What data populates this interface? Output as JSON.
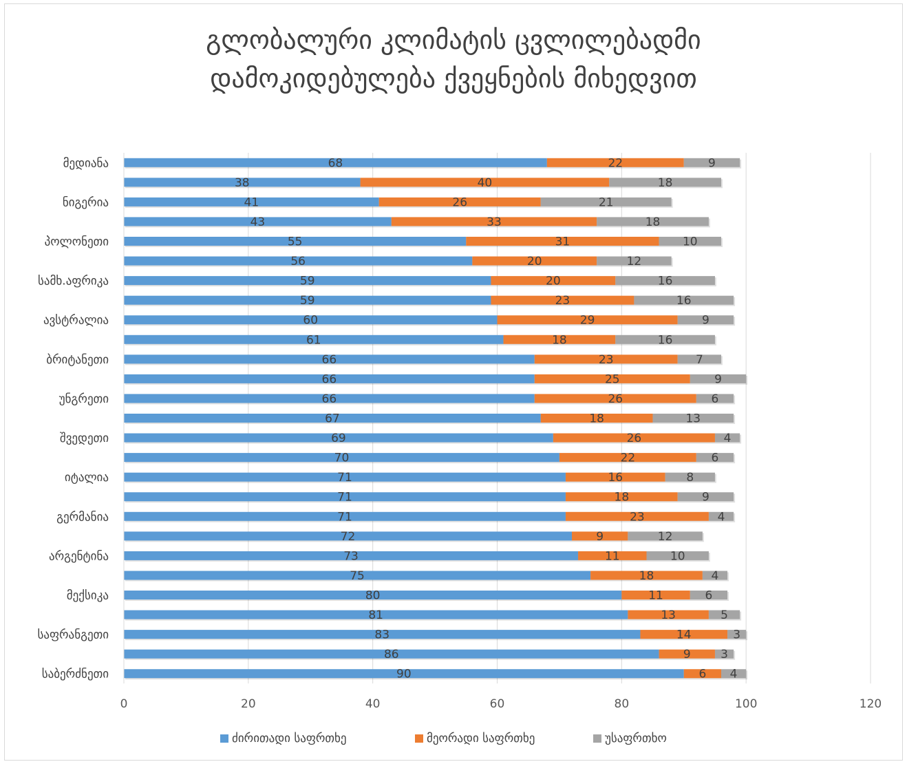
{
  "chart_data": {
    "type": "bar",
    "orientation": "horizontal",
    "stacked": true,
    "title_lines": [
      "გლობალური კლიმატის ცვლილებადმი",
      "დამოკიდებულება ქვეყნების მიხედვით"
    ],
    "categories": [
      "მედიანა",
      "",
      "ნიგერია",
      "",
      "პოლონეთი",
      "",
      "სამხ.აფრიკა",
      "",
      "ავსტრალია",
      "",
      "ბრიტანეთი",
      "",
      "უნგრეთი",
      "",
      "შვედეთი",
      "",
      "იტალია",
      "",
      "გერმანია",
      "",
      "არგენტინა",
      "",
      "მექსიკა",
      "",
      "საფრანგეთი",
      "",
      "საბერძნეთი"
    ],
    "series": [
      {
        "name": "ძირითადი საფრთხე",
        "color": "#5b9bd5",
        "values": [
          68,
          38,
          41,
          43,
          55,
          56,
          59,
          59,
          60,
          61,
          66,
          66,
          66,
          67,
          69,
          70,
          71,
          71,
          71,
          72,
          73,
          75,
          80,
          81,
          83,
          86,
          90
        ]
      },
      {
        "name": "მეორადი საფრთხე",
        "color": "#ed7d31",
        "values": [
          22,
          40,
          26,
          33,
          31,
          20,
          20,
          23,
          29,
          18,
          23,
          25,
          26,
          18,
          26,
          22,
          16,
          18,
          23,
          9,
          11,
          18,
          11,
          13,
          14,
          9,
          6
        ]
      },
      {
        "name": "უსაფრთხო",
        "color": "#a5a5a5",
        "values": [
          9,
          18,
          21,
          18,
          10,
          12,
          16,
          16,
          9,
          16,
          7,
          9,
          6,
          13,
          4,
          6,
          8,
          9,
          4,
          12,
          10,
          4,
          6,
          5,
          3,
          3,
          4
        ]
      }
    ],
    "xlim": [
      0,
      120
    ],
    "xticks": [
      "0",
      "20",
      "40",
      "60",
      "80",
      "100",
      "120"
    ],
    "grid": true,
    "legend_position": "bottom"
  }
}
